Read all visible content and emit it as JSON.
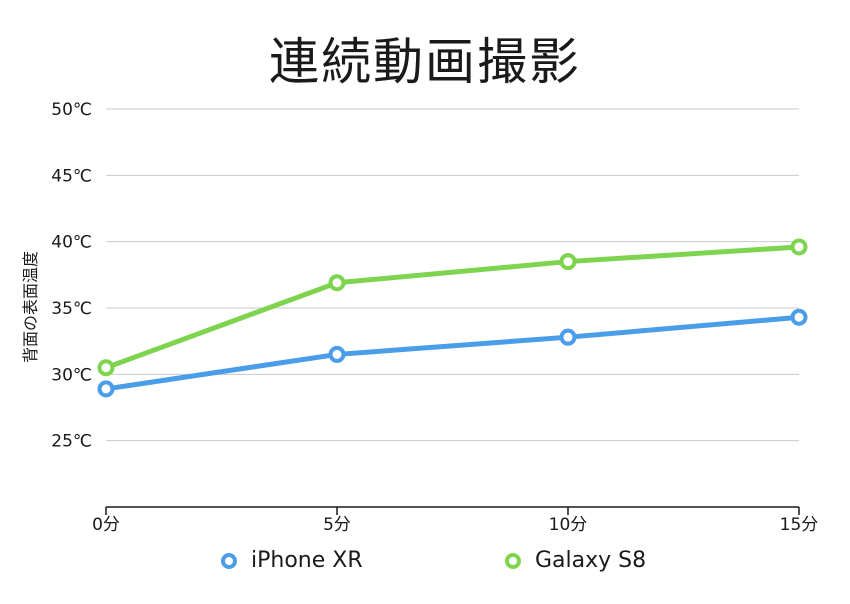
{
  "chart_data": {
    "type": "line",
    "title": "連続動画撮影",
    "ylabel": "背面の表面温度",
    "xlabel": "",
    "categories": [
      "0分",
      "5分",
      "10分",
      "15分"
    ],
    "y_ticks": [
      "25℃",
      "30℃",
      "35℃",
      "40℃",
      "45℃",
      "50℃"
    ],
    "y_tick_values": [
      25,
      30,
      35,
      40,
      45,
      50
    ],
    "ylim": [
      20,
      50
    ],
    "grid": true,
    "legend_position": "bottom",
    "series": [
      {
        "name": "iPhone XR",
        "color": "#4a9de8",
        "values": [
          28.9,
          31.5,
          32.8,
          34.3
        ]
      },
      {
        "name": "Galaxy S8",
        "color": "#7fd44f",
        "values": [
          30.5,
          36.9,
          38.5,
          39.6
        ]
      }
    ]
  }
}
